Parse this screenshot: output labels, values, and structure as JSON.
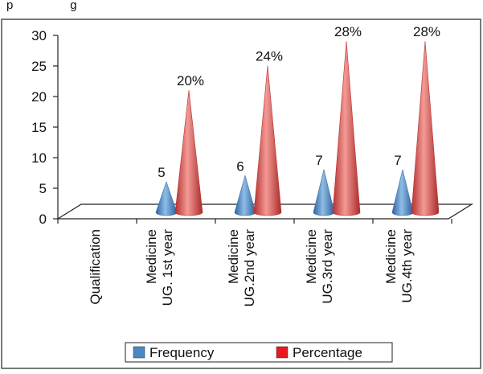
{
  "top_caption": "p                 g",
  "chart_data": {
    "type": "bar",
    "style": "3d-cone",
    "categories": [
      "Qualification",
      "Medicine UG. 1st year",
      "Medicine UG.2nd year",
      "Medicine UG.3rd year",
      "Medicine UG.4th year"
    ],
    "category_lines": [
      [
        "Qualification"
      ],
      [
        "Medicine",
        "UG. 1st year"
      ],
      [
        "Medicine",
        "UG.2nd year"
      ],
      [
        "Medicine",
        "UG.3rd year"
      ],
      [
        "Medicine",
        "UG.4th year"
      ]
    ],
    "series": [
      {
        "name": "Frequency",
        "values": [
          null,
          5,
          6,
          7,
          7
        ],
        "labels": [
          "",
          "5",
          "6",
          "7",
          "7"
        ],
        "color": "#4a86c5"
      },
      {
        "name": "Percentage",
        "values": [
          null,
          20,
          24,
          28,
          28
        ],
        "labels": [
          "",
          "20%",
          "24%",
          "28%",
          "28%"
        ],
        "color": "#e0504e"
      }
    ],
    "y_ticks": [
      "0",
      "5",
      "10",
      "15",
      "20",
      "25",
      "30"
    ],
    "ylim": [
      0,
      30
    ],
    "legend_position": "bottom",
    "grid": false
  }
}
